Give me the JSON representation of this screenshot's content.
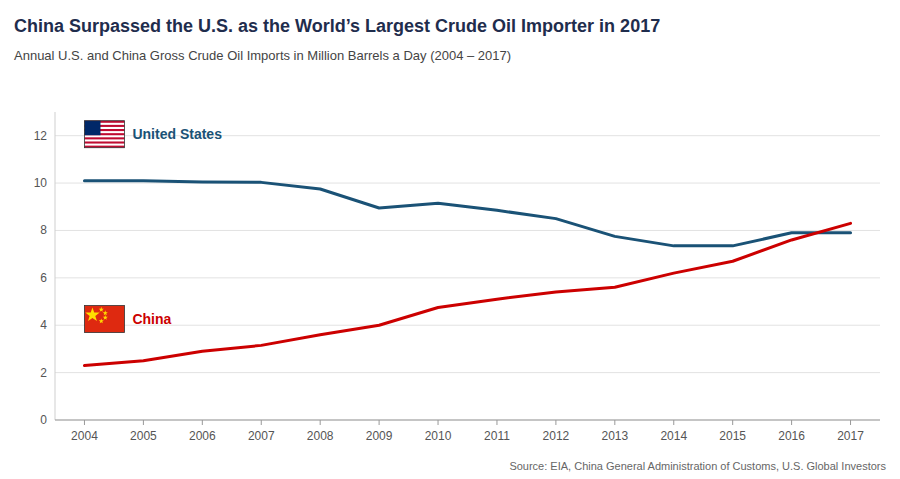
{
  "chart_data": {
    "type": "line",
    "title": "China Surpassed the U.S. as the World’s Largest Crude Oil Importer in 2017",
    "subtitle": "Annual U.S. and China Gross Crude Oil Imports in Million Barrels a Day (2004 – 2017)",
    "annotations": [
      "Source: EIA, China General Administration of Customs, U.S. Global Investors"
    ],
    "x": [
      2004,
      2005,
      2006,
      2007,
      2008,
      2009,
      2010,
      2011,
      2012,
      2013,
      2014,
      2015,
      2016,
      2017
    ],
    "series": [
      {
        "name": "United States",
        "color": "#1a5276",
        "values": [
          10.1,
          10.1,
          10.05,
          10.03,
          9.75,
          8.95,
          9.15,
          8.85,
          8.5,
          7.75,
          7.35,
          7.35,
          7.9,
          7.9
        ]
      },
      {
        "name": "China",
        "color": "#cc0000",
        "values": [
          2.3,
          2.5,
          2.9,
          3.15,
          3.6,
          4.0,
          4.75,
          5.1,
          5.4,
          5.6,
          6.2,
          6.7,
          7.6,
          8.3
        ]
      }
    ],
    "xlim": [
      2003.5,
      2017.5
    ],
    "xticks": [
      2004,
      2005,
      2006,
      2007,
      2008,
      2009,
      2010,
      2011,
      2012,
      2013,
      2014,
      2015,
      2016,
      2017
    ],
    "ylim": [
      0,
      13
    ],
    "yticks": [
      0,
      2,
      4,
      6,
      8,
      10,
      12
    ],
    "grid": true
  }
}
